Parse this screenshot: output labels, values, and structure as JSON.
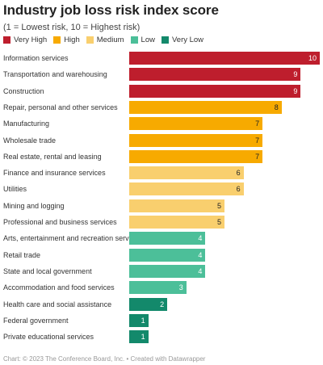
{
  "title": "Industry job loss risk index score",
  "subtitle": "(1 = Lowest risk, 10 = Highest risk)",
  "legend": [
    {
      "label": "Very High",
      "color": "#be1e2d"
    },
    {
      "label": "High",
      "color": "#f7aa00"
    },
    {
      "label": "Medium",
      "color": "#f9cf6e"
    },
    {
      "label": "Low",
      "color": "#4cbf99"
    },
    {
      "label": "Very Low",
      "color": "#13896b"
    }
  ],
  "footer": "Chart: © 2023 The Conference Board, Inc. • Created with Datawrapper",
  "chart_data": {
    "type": "bar",
    "orientation": "horizontal",
    "title": "Industry job loss risk index score",
    "subtitle": "(1 = Lowest risk, 10 = Highest risk)",
    "xlim": [
      0,
      10
    ],
    "grid": false,
    "legend_position": "top-left",
    "categories": [
      "Information services",
      "Transportation and warehousing",
      "Construction",
      "Repair, personal and other services",
      "Manufacturing",
      "Wholesale trade",
      "Real estate, rental and leasing",
      "Finance and insurance services",
      "Utilities",
      "Mining and logging",
      "Professional and business services",
      "Arts, entertainment and recreation services",
      "Retail trade",
      "State and local government",
      "Accommodation and food services",
      "Health care and social assistance",
      "Federal government",
      "Private educational services"
    ],
    "values": [
      10,
      9,
      9,
      8,
      7,
      7,
      7,
      6,
      6,
      5,
      5,
      4,
      4,
      4,
      3,
      2,
      1,
      1
    ],
    "risk_levels": [
      "Very High",
      "Very High",
      "Very High",
      "High",
      "High",
      "High",
      "High",
      "Medium",
      "Medium",
      "Medium",
      "Medium",
      "Low",
      "Low",
      "Low",
      "Low",
      "Very Low",
      "Very Low",
      "Very Low"
    ]
  }
}
